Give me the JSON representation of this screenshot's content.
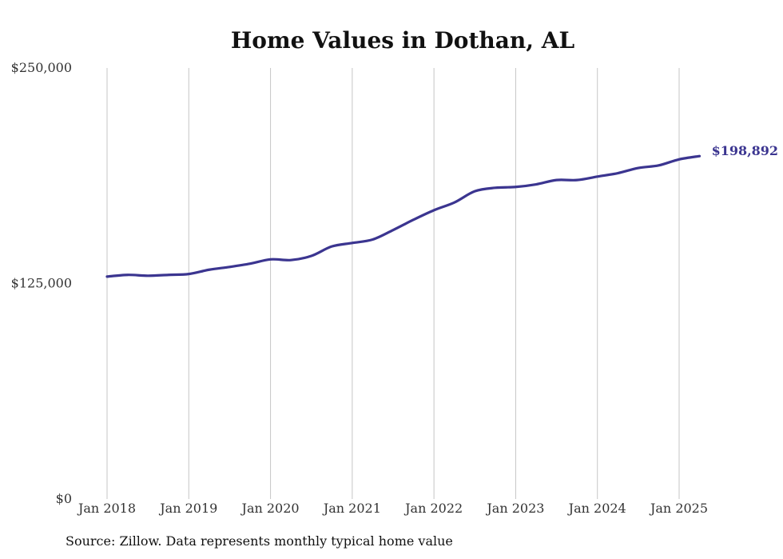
{
  "chart_data": {
    "type": "line",
    "title": "Home Values in Dothan, AL",
    "xlabel": "",
    "ylabel": "",
    "ylim": [
      0,
      250000
    ],
    "y_ticks": [
      {
        "value": 0,
        "label": "$0"
      },
      {
        "value": 125000,
        "label": "$125,000"
      },
      {
        "value": 250000,
        "label": "$250,000"
      }
    ],
    "x_ticks": [
      {
        "value": "2018-01",
        "label": "Jan 2018"
      },
      {
        "value": "2019-01",
        "label": "Jan 2019"
      },
      {
        "value": "2020-01",
        "label": "Jan 2020"
      },
      {
        "value": "2021-01",
        "label": "Jan 2021"
      },
      {
        "value": "2022-01",
        "label": "Jan 2022"
      },
      {
        "value": "2023-01",
        "label": "Jan 2023"
      },
      {
        "value": "2024-01",
        "label": "Jan 2024"
      },
      {
        "value": "2025-01",
        "label": "Jan 2025"
      }
    ],
    "grid": {
      "vertical": true,
      "horizontal": false
    },
    "series": [
      {
        "color": "#3b3590",
        "end_label": "$198,892",
        "points": [
          {
            "x": "2018-01",
            "y": 129000
          },
          {
            "x": "2018-04",
            "y": 130000
          },
          {
            "x": "2018-07",
            "y": 129500
          },
          {
            "x": "2018-10",
            "y": 130000
          },
          {
            "x": "2019-01",
            "y": 130500
          },
          {
            "x": "2019-04",
            "y": 133000
          },
          {
            "x": "2019-07",
            "y": 134600
          },
          {
            "x": "2019-10",
            "y": 136500
          },
          {
            "x": "2020-01",
            "y": 139000
          },
          {
            "x": "2020-04",
            "y": 138600
          },
          {
            "x": "2020-07",
            "y": 141000
          },
          {
            "x": "2020-10",
            "y": 146500
          },
          {
            "x": "2021-01",
            "y": 148500
          },
          {
            "x": "2021-04",
            "y": 150500
          },
          {
            "x": "2021-07",
            "y": 156000
          },
          {
            "x": "2021-10",
            "y": 162000
          },
          {
            "x": "2022-01",
            "y": 167500
          },
          {
            "x": "2022-04",
            "y": 172000
          },
          {
            "x": "2022-07",
            "y": 178500
          },
          {
            "x": "2022-10",
            "y": 180500
          },
          {
            "x": "2023-01",
            "y": 181000
          },
          {
            "x": "2023-04",
            "y": 182500
          },
          {
            "x": "2023-07",
            "y": 185000
          },
          {
            "x": "2023-10",
            "y": 185000
          },
          {
            "x": "2024-01",
            "y": 187000
          },
          {
            "x": "2024-04",
            "y": 189000
          },
          {
            "x": "2024-07",
            "y": 192000
          },
          {
            "x": "2024-10",
            "y": 193500
          },
          {
            "x": "2025-01",
            "y": 197000
          },
          {
            "x": "2025-04",
            "y": 198892
          }
        ]
      }
    ],
    "source": "Source: Zillow. Data represents monthly typical home value"
  }
}
